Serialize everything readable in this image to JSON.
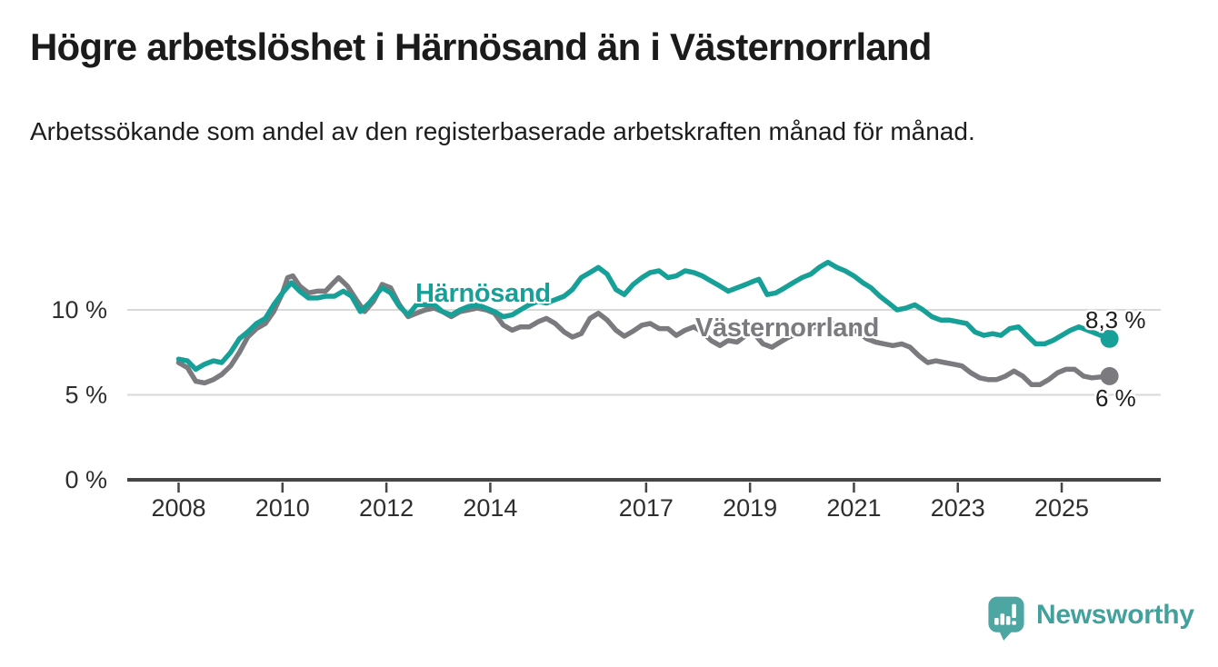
{
  "header": {
    "title": "Högre arbetslöshet i Härnösand än i Västernorrland",
    "subtitle": "Arbetssökande som andel av den registerbaserade arbetskraften månad för månad."
  },
  "footer": {
    "brand": "Newsworthy",
    "brand_color": "#42a19c",
    "icon_color": "#4da6a2"
  },
  "chart_data": {
    "type": "line",
    "grid": "horizontal",
    "legend_position": "inline-labels",
    "xlim": [
      2007.9,
      2026.3
    ],
    "ylim": [
      0,
      13.5
    ],
    "x_ticks": [
      {
        "year": 2008,
        "label": "2008"
      },
      {
        "year": 2010,
        "label": "2010"
      },
      {
        "year": 2012,
        "label": "2012"
      },
      {
        "year": 2014,
        "label": "2014"
      },
      {
        "year": 2017,
        "label": "2017"
      },
      {
        "year": 2019,
        "label": "2019"
      },
      {
        "year": 2021,
        "label": "2021"
      },
      {
        "year": 2023,
        "label": "2023"
      },
      {
        "year": 2025,
        "label": "2025"
      }
    ],
    "y_ticks": [
      {
        "value": 0,
        "label": "0 %"
      },
      {
        "value": 5,
        "label": "5 %"
      },
      {
        "value": 10,
        "label": "10 %"
      }
    ],
    "colors": {
      "gridline": "#d9d9d9",
      "axis": "#454545",
      "tick_text": "#2e2e2e"
    },
    "series": [
      {
        "name": "Härnösand",
        "color": "#17a097",
        "end_label": "8,3 %",
        "end_value": 8.3,
        "points": [
          [
            2008.0,
            7.1
          ],
          [
            2008.17,
            7.0
          ],
          [
            2008.33,
            6.5
          ],
          [
            2008.5,
            6.8
          ],
          [
            2008.67,
            7.0
          ],
          [
            2008.83,
            6.9
          ],
          [
            2009.0,
            7.5
          ],
          [
            2009.17,
            8.3
          ],
          [
            2009.33,
            8.7
          ],
          [
            2009.5,
            9.2
          ],
          [
            2009.67,
            9.5
          ],
          [
            2009.83,
            10.3
          ],
          [
            2010.0,
            11.0
          ],
          [
            2010.17,
            11.6
          ],
          [
            2010.33,
            11.1
          ],
          [
            2010.5,
            10.7
          ],
          [
            2010.67,
            10.7
          ],
          [
            2010.83,
            10.8
          ],
          [
            2011.0,
            10.8
          ],
          [
            2011.17,
            11.1
          ],
          [
            2011.33,
            10.8
          ],
          [
            2011.5,
            9.9
          ],
          [
            2011.67,
            10.4
          ],
          [
            2011.83,
            11.0
          ],
          [
            2011.92,
            11.3
          ],
          [
            2012.08,
            11.0
          ],
          [
            2012.25,
            10.2
          ],
          [
            2012.42,
            9.7
          ],
          [
            2012.58,
            10.3
          ],
          [
            2012.75,
            10.3
          ],
          [
            2012.92,
            10.3
          ],
          [
            2013.08,
            9.9
          ],
          [
            2013.25,
            9.7
          ],
          [
            2013.42,
            10.0
          ],
          [
            2013.58,
            10.2
          ],
          [
            2013.75,
            10.3
          ],
          [
            2013.92,
            10.1
          ],
          [
            2014.08,
            9.9
          ],
          [
            2014.25,
            9.6
          ],
          [
            2014.42,
            9.7
          ],
          [
            2014.58,
            10.0
          ],
          [
            2014.75,
            10.3
          ],
          [
            2014.92,
            10.5
          ],
          [
            2015.08,
            10.4
          ],
          [
            2015.25,
            10.6
          ],
          [
            2015.42,
            10.8
          ],
          [
            2015.58,
            11.2
          ],
          [
            2015.75,
            11.9
          ],
          [
            2015.92,
            12.2
          ],
          [
            2016.08,
            12.5
          ],
          [
            2016.25,
            12.1
          ],
          [
            2016.42,
            11.2
          ],
          [
            2016.58,
            10.9
          ],
          [
            2016.75,
            11.5
          ],
          [
            2016.92,
            11.9
          ],
          [
            2017.08,
            12.2
          ],
          [
            2017.25,
            12.3
          ],
          [
            2017.42,
            11.9
          ],
          [
            2017.58,
            12.0
          ],
          [
            2017.75,
            12.3
          ],
          [
            2017.92,
            12.2
          ],
          [
            2018.08,
            12.0
          ],
          [
            2018.25,
            11.7
          ],
          [
            2018.42,
            11.4
          ],
          [
            2018.58,
            11.1
          ],
          [
            2018.75,
            11.3
          ],
          [
            2018.92,
            11.5
          ],
          [
            2019.08,
            11.7
          ],
          [
            2019.17,
            11.8
          ],
          [
            2019.33,
            10.9
          ],
          [
            2019.5,
            11.0
          ],
          [
            2019.67,
            11.3
          ],
          [
            2019.83,
            11.6
          ],
          [
            2020.0,
            11.9
          ],
          [
            2020.17,
            12.1
          ],
          [
            2020.33,
            12.5
          ],
          [
            2020.5,
            12.8
          ],
          [
            2020.67,
            12.5
          ],
          [
            2020.83,
            12.3
          ],
          [
            2021.0,
            12.0
          ],
          [
            2021.17,
            11.6
          ],
          [
            2021.33,
            11.3
          ],
          [
            2021.5,
            10.8
          ],
          [
            2021.67,
            10.4
          ],
          [
            2021.83,
            10.0
          ],
          [
            2022.0,
            10.1
          ],
          [
            2022.17,
            10.3
          ],
          [
            2022.33,
            10.0
          ],
          [
            2022.5,
            9.6
          ],
          [
            2022.67,
            9.4
          ],
          [
            2022.83,
            9.4
          ],
          [
            2023.0,
            9.3
          ],
          [
            2023.17,
            9.2
          ],
          [
            2023.33,
            8.7
          ],
          [
            2023.5,
            8.5
          ],
          [
            2023.67,
            8.6
          ],
          [
            2023.83,
            8.5
          ],
          [
            2024.0,
            8.9
          ],
          [
            2024.17,
            9.0
          ],
          [
            2024.33,
            8.5
          ],
          [
            2024.5,
            8.0
          ],
          [
            2024.67,
            8.0
          ],
          [
            2024.83,
            8.2
          ],
          [
            2025.0,
            8.5
          ],
          [
            2025.17,
            8.8
          ],
          [
            2025.33,
            9.0
          ],
          [
            2025.5,
            8.8
          ],
          [
            2025.67,
            8.6
          ],
          [
            2025.92,
            8.3
          ]
        ]
      },
      {
        "name": "Västernorrland",
        "color": "#7a7a7f",
        "end_label": "6 %",
        "end_value": 6.0,
        "points": [
          [
            2008.0,
            6.9
          ],
          [
            2008.17,
            6.6
          ],
          [
            2008.33,
            5.8
          ],
          [
            2008.5,
            5.7
          ],
          [
            2008.67,
            5.9
          ],
          [
            2008.83,
            6.2
          ],
          [
            2009.0,
            6.7
          ],
          [
            2009.17,
            7.5
          ],
          [
            2009.33,
            8.4
          ],
          [
            2009.5,
            8.9
          ],
          [
            2009.67,
            9.2
          ],
          [
            2009.83,
            9.9
          ],
          [
            2010.0,
            11.0
          ],
          [
            2010.1,
            11.9
          ],
          [
            2010.2,
            12.0
          ],
          [
            2010.33,
            11.4
          ],
          [
            2010.5,
            11.0
          ],
          [
            2010.67,
            11.1
          ],
          [
            2010.83,
            11.1
          ],
          [
            2010.95,
            11.5
          ],
          [
            2011.08,
            11.9
          ],
          [
            2011.25,
            11.4
          ],
          [
            2011.42,
            10.6
          ],
          [
            2011.58,
            9.9
          ],
          [
            2011.75,
            10.5
          ],
          [
            2011.92,
            11.5
          ],
          [
            2012.08,
            11.3
          ],
          [
            2012.25,
            10.3
          ],
          [
            2012.42,
            9.6
          ],
          [
            2012.58,
            9.8
          ],
          [
            2012.75,
            10.0
          ],
          [
            2012.92,
            10.1
          ],
          [
            2013.08,
            9.9
          ],
          [
            2013.25,
            9.6
          ],
          [
            2013.42,
            9.9
          ],
          [
            2013.58,
            10.0
          ],
          [
            2013.75,
            10.1
          ],
          [
            2013.92,
            10.0
          ],
          [
            2014.08,
            9.8
          ],
          [
            2014.25,
            9.1
          ],
          [
            2014.42,
            8.8
          ],
          [
            2014.58,
            9.0
          ],
          [
            2014.75,
            9.0
          ],
          [
            2014.92,
            9.3
          ],
          [
            2015.08,
            9.5
          ],
          [
            2015.25,
            9.2
          ],
          [
            2015.42,
            8.7
          ],
          [
            2015.58,
            8.4
          ],
          [
            2015.75,
            8.6
          ],
          [
            2015.92,
            9.5
          ],
          [
            2016.08,
            9.8
          ],
          [
            2016.25,
            9.4
          ],
          [
            2016.42,
            8.8
          ],
          [
            2016.58,
            8.45
          ],
          [
            2016.75,
            8.75
          ],
          [
            2016.92,
            9.1
          ],
          [
            2017.08,
            9.2
          ],
          [
            2017.25,
            8.9
          ],
          [
            2017.42,
            8.9
          ],
          [
            2017.58,
            8.5
          ],
          [
            2017.75,
            8.8
          ],
          [
            2017.92,
            9.0
          ],
          [
            2018.08,
            8.7
          ],
          [
            2018.25,
            8.2
          ],
          [
            2018.42,
            7.9
          ],
          [
            2018.58,
            8.2
          ],
          [
            2018.75,
            8.1
          ],
          [
            2018.92,
            8.5
          ],
          [
            2019.08,
            8.6
          ],
          [
            2019.25,
            8.0
          ],
          [
            2019.42,
            7.8
          ],
          [
            2019.58,
            8.1
          ],
          [
            2019.75,
            8.4
          ],
          [
            2019.92,
            8.6
          ],
          [
            2020.08,
            8.8
          ],
          [
            2020.25,
            9.0
          ],
          [
            2020.42,
            9.2
          ],
          [
            2020.58,
            9.2
          ],
          [
            2020.75,
            9.0
          ],
          [
            2020.92,
            8.9
          ],
          [
            2021.08,
            8.7
          ],
          [
            2021.25,
            8.3
          ],
          [
            2021.42,
            8.1
          ],
          [
            2021.58,
            8.0
          ],
          [
            2021.75,
            7.9
          ],
          [
            2021.92,
            8.0
          ],
          [
            2022.08,
            7.8
          ],
          [
            2022.25,
            7.3
          ],
          [
            2022.42,
            6.9
          ],
          [
            2022.58,
            7.0
          ],
          [
            2022.75,
            6.9
          ],
          [
            2022.92,
            6.8
          ],
          [
            2023.08,
            6.7
          ],
          [
            2023.25,
            6.3
          ],
          [
            2023.42,
            6.0
          ],
          [
            2023.58,
            5.9
          ],
          [
            2023.75,
            5.9
          ],
          [
            2023.92,
            6.1
          ],
          [
            2024.08,
            6.4
          ],
          [
            2024.25,
            6.1
          ],
          [
            2024.42,
            5.6
          ],
          [
            2024.58,
            5.6
          ],
          [
            2024.75,
            5.9
          ],
          [
            2024.92,
            6.3
          ],
          [
            2025.08,
            6.5
          ],
          [
            2025.25,
            6.5
          ],
          [
            2025.42,
            6.1
          ],
          [
            2025.58,
            6.0
          ],
          [
            2025.92,
            6.1
          ]
        ]
      }
    ]
  }
}
